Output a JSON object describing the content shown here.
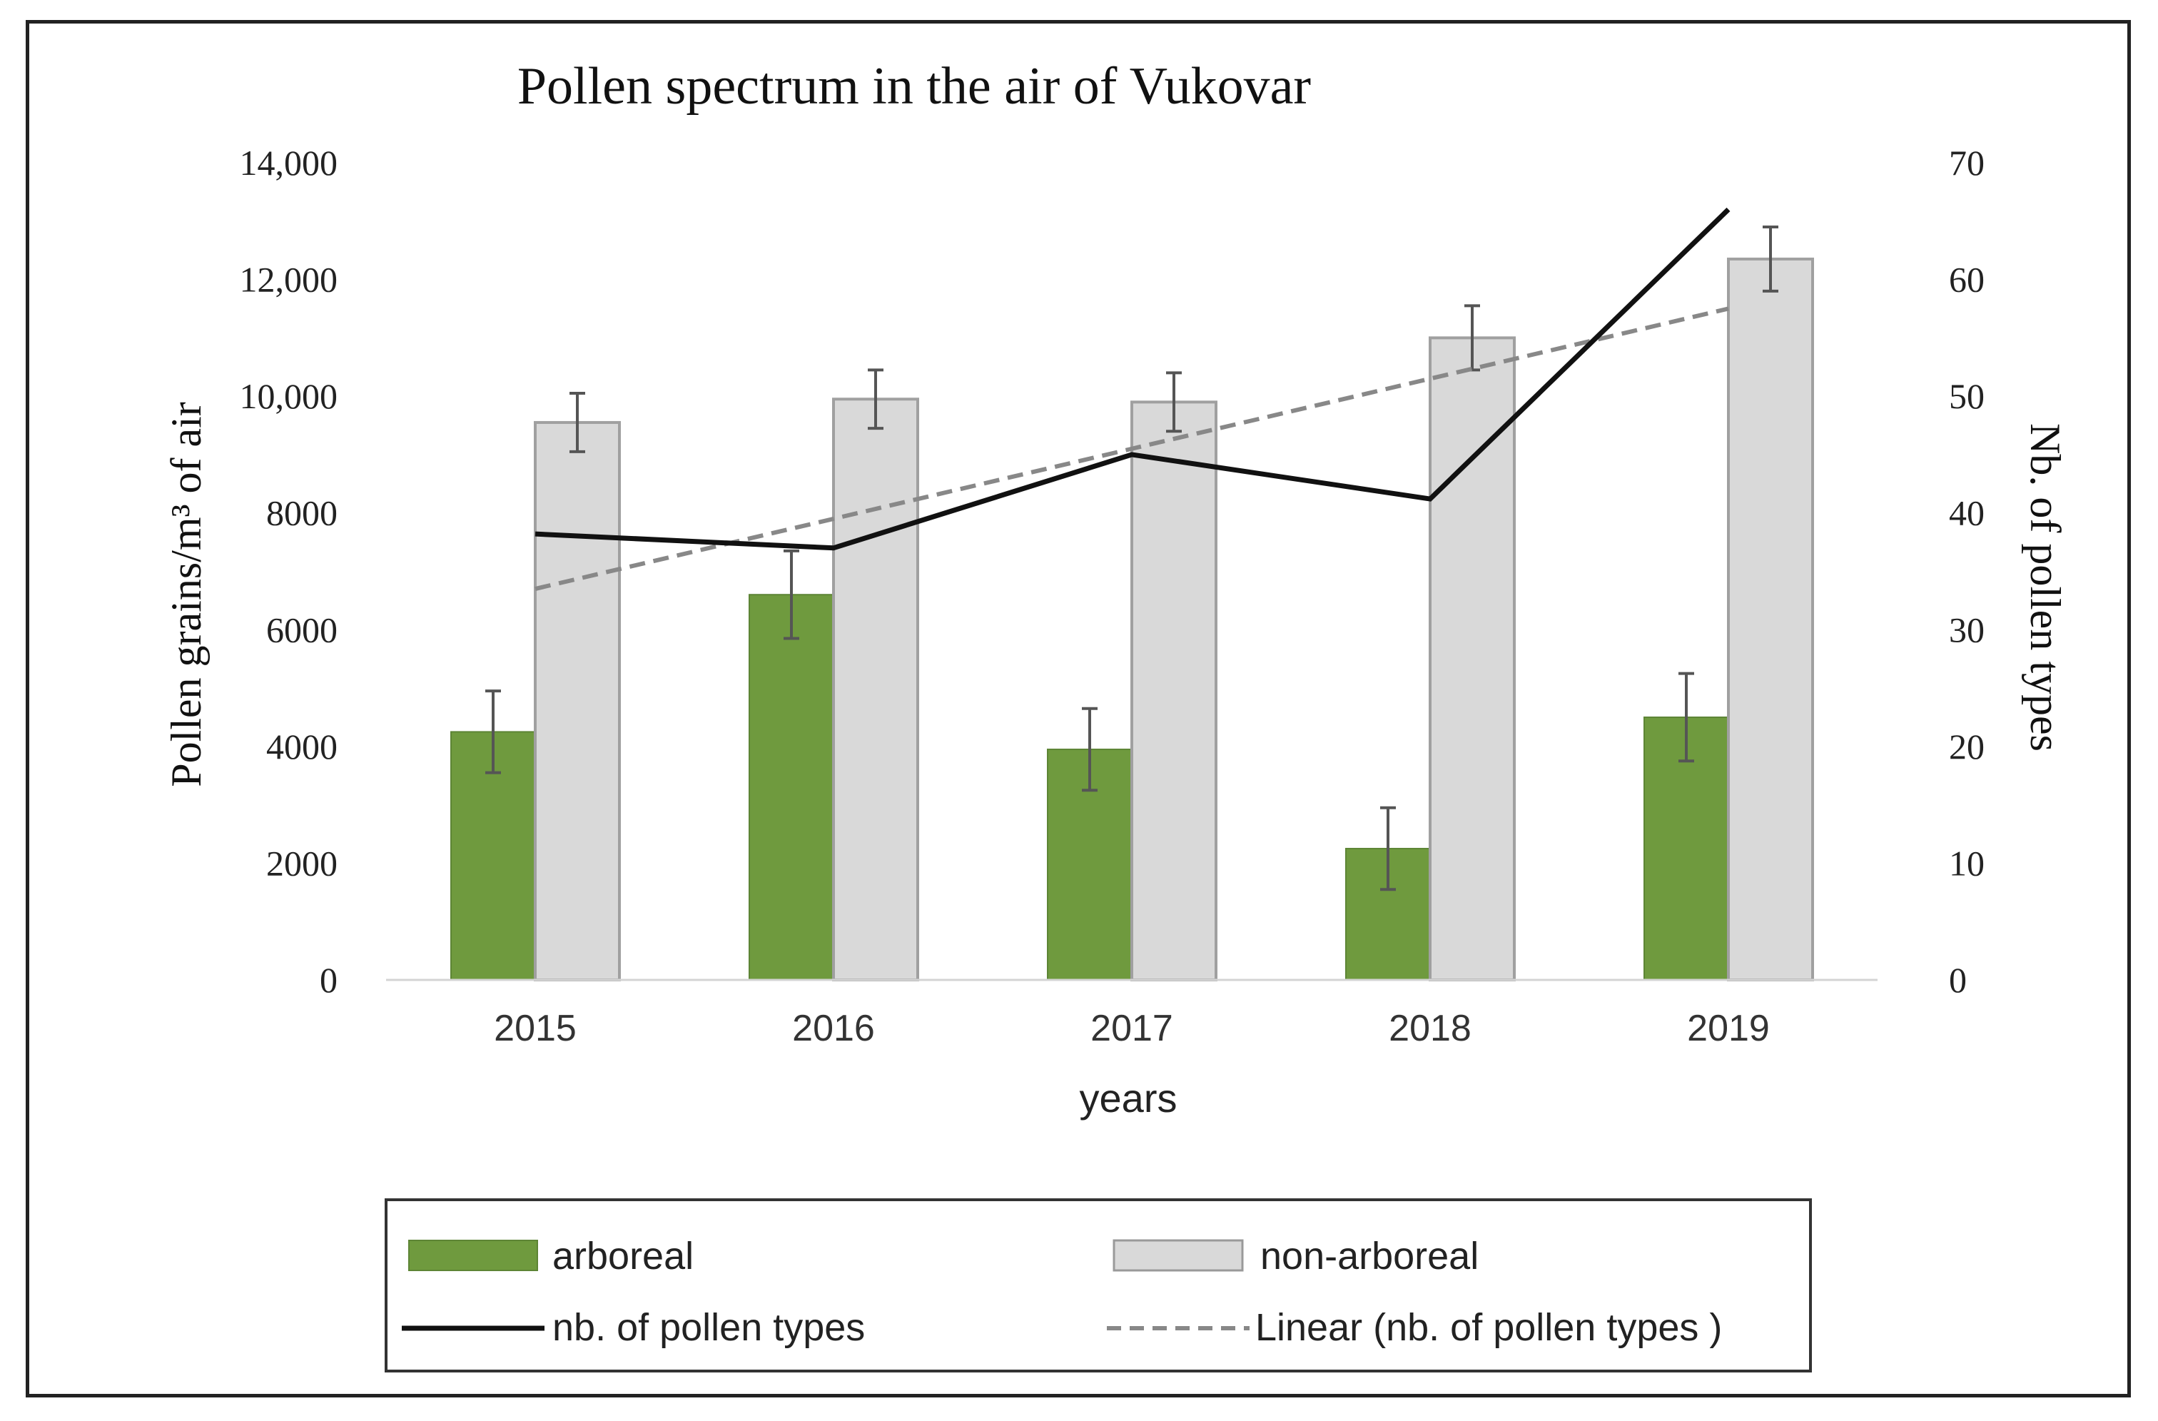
{
  "chart_data": {
    "type": "bar",
    "title": "Pollen spectrum in the air of Vukovar",
    "categories": [
      "2015",
      "2016",
      "2017",
      "2018",
      "2019"
    ],
    "xlabel": "years",
    "ylabel_left": "Pollen grains/m³ of air",
    "ylabel_right": "Nb. of pollen types",
    "ylim_left": [
      0,
      14000
    ],
    "ylim_right": [
      0,
      70
    ],
    "yticks_left": [
      "0",
      "2000",
      "4000",
      "6000",
      "8000",
      "10,000",
      "12,000",
      "14,000"
    ],
    "yticks_right": [
      "0",
      "10",
      "20",
      "30",
      "40",
      "50",
      "60",
      "70"
    ],
    "gridlines": false,
    "legend_position": "bottom",
    "series": [
      {
        "name": "arboreal",
        "type": "bar",
        "axis": "left",
        "color": "#6f9a3e",
        "values": [
          4250,
          6600,
          3950,
          2250,
          4500
        ],
        "error": [
          700,
          750,
          700,
          700,
          750
        ]
      },
      {
        "name": "non-arboreal",
        "type": "bar",
        "axis": "left",
        "color": "#d9d9d9",
        "values": [
          9550,
          9950,
          9900,
          11000,
          12350
        ],
        "error": [
          500,
          500,
          500,
          550,
          550
        ]
      },
      {
        "name": "nb. of pollen types",
        "type": "line",
        "axis": "right",
        "color": "#111111",
        "values": [
          38.2,
          37.0,
          45.0,
          41.2,
          66.0
        ]
      },
      {
        "name": "Linear (nb. of  pollen types )",
        "type": "trendline",
        "axis": "right",
        "color": "#888888",
        "values": [
          33.5,
          39.5,
          45.5,
          51.5,
          57.5
        ]
      }
    ],
    "legend": {
      "arboreal": "arboreal",
      "non_arboreal": "non-arboreal",
      "line": "nb. of  pollen types",
      "trend": "Linear (nb. of  pollen types )"
    }
  }
}
